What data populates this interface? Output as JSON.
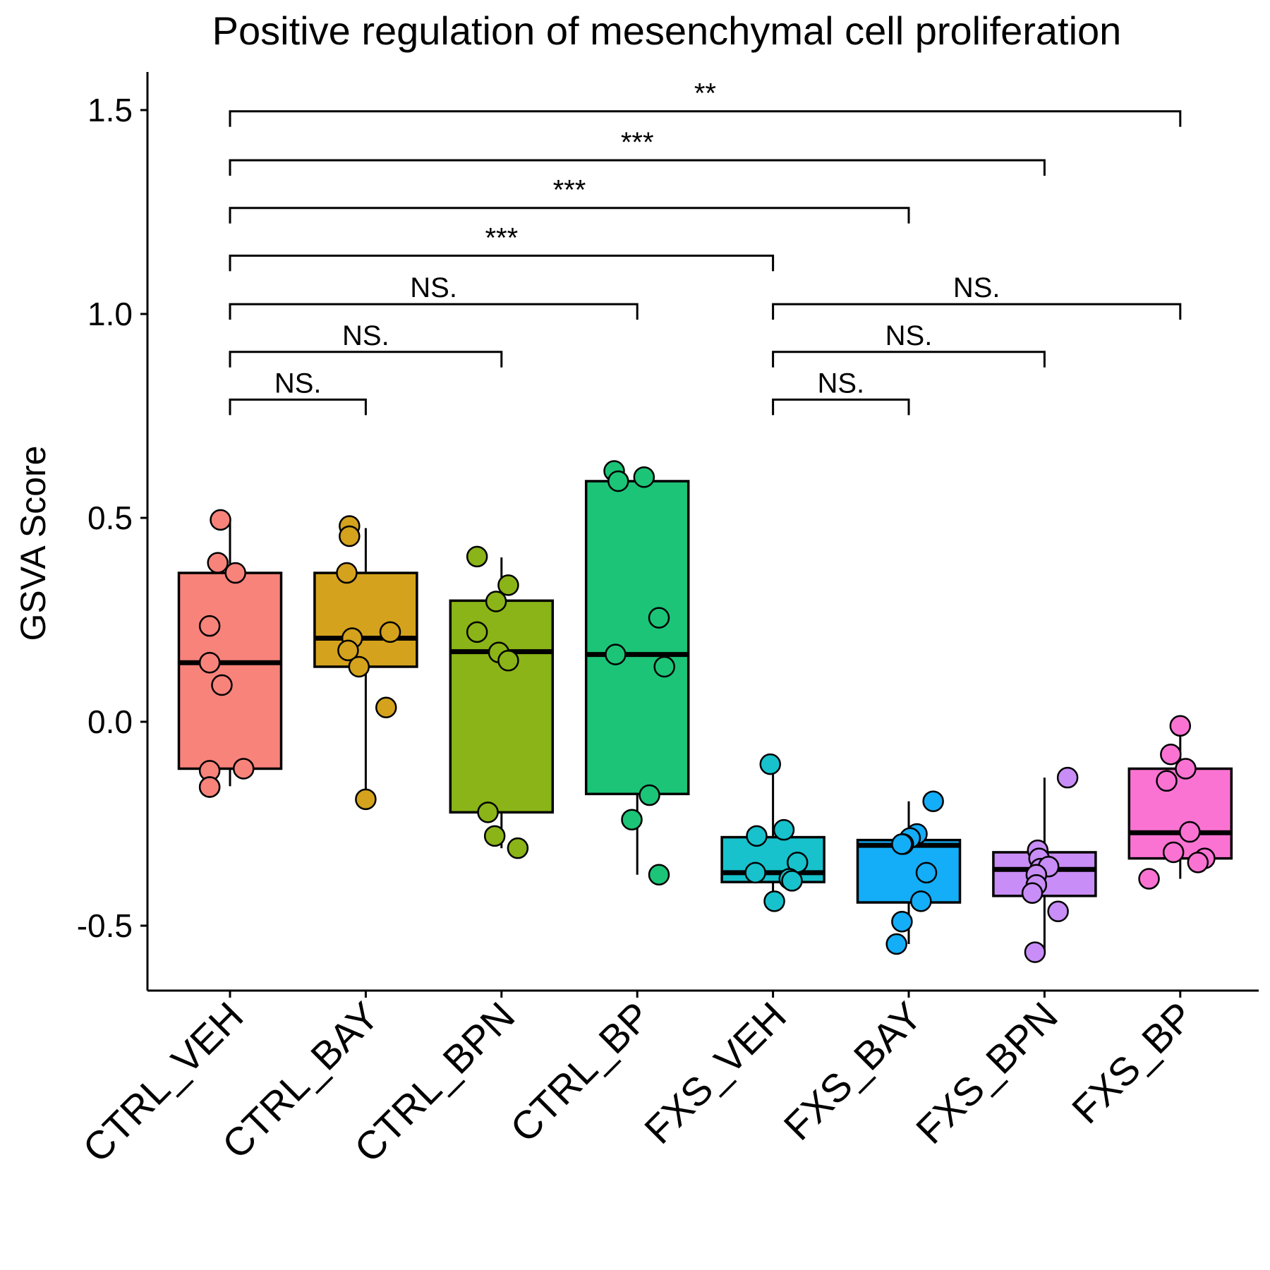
{
  "chart_data": {
    "type": "box",
    "title": "Positive regulation of mesenchymal cell proliferation",
    "xlabel": "",
    "ylabel": "GSVA Score",
    "ylim": [
      -0.66,
      1.6
    ],
    "yticks": [
      -0.5,
      0.0,
      0.5,
      1.0,
      1.5
    ],
    "ytick_labels": [
      "-0.5",
      "0.0",
      "0.5",
      "1.0",
      "1.5"
    ],
    "grid": false,
    "legend": "none",
    "categories": [
      "CTRL_VEH",
      "CTRL_BAY",
      "CTRL_BPN",
      "CTRL_BP",
      "FXS_VEH",
      "FXS_BAY",
      "FXS_BPN",
      "FXS_BP"
    ],
    "colors": [
      "#F8837A",
      "#D4A21C",
      "#8AB417",
      "#1CC477",
      "#17C2CC",
      "#14ADF7",
      "#C88DF7",
      "#FA73D2"
    ],
    "boxes": [
      {
        "category": "CTRL_VEH",
        "q1": -0.115,
        "median": 0.145,
        "q3": 0.365,
        "whisker_low": -0.158,
        "whisker_high": 0.495
      },
      {
        "category": "CTRL_BAY",
        "q1": 0.135,
        "median": 0.205,
        "q3": 0.365,
        "whisker_low": -0.19,
        "whisker_high": 0.475
      },
      {
        "category": "CTRL_BPN",
        "q1": -0.222,
        "median": 0.172,
        "q3": 0.297,
        "whisker_low": -0.31,
        "whisker_high": 0.403
      },
      {
        "category": "CTRL_BP",
        "q1": -0.177,
        "median": 0.165,
        "q3": 0.59,
        "whisker_low": -0.375,
        "whisker_high": 0.61
      },
      {
        "category": "FXS_VEH",
        "q1": -0.393,
        "median": -0.37,
        "q3": -0.283,
        "whisker_low": -0.44,
        "whisker_high": -0.104
      },
      {
        "category": "FXS_BAY",
        "q1": -0.443,
        "median": -0.303,
        "q3": -0.29,
        "whisker_low": -0.545,
        "whisker_high": -0.195
      },
      {
        "category": "FXS_BPN",
        "q1": -0.427,
        "median": -0.362,
        "q3": -0.32,
        "whisker_low": -0.565,
        "whisker_high": -0.137
      },
      {
        "category": "FXS_BP",
        "q1": -0.335,
        "median": -0.272,
        "q3": -0.115,
        "whisker_low": -0.385,
        "whisker_high": -0.01
      }
    ],
    "points": [
      {
        "category": "CTRL_VEH",
        "x": [
          -0.07,
          -0.09,
          0.04,
          -0.15,
          -0.15,
          -0.06,
          0.1,
          -0.15,
          -0.15,
          -0.15
        ],
        "y": [
          0.495,
          0.39,
          0.365,
          0.235,
          0.145,
          0.09,
          -0.115,
          -0.12,
          -0.16,
          -0.16
        ]
      },
      {
        "category": "CTRL_BAY",
        "x": [
          -0.12,
          -0.12,
          -0.14,
          -0.1,
          0.18,
          -0.13,
          -0.05,
          0.15,
          0.0
        ],
        "y": [
          0.48,
          0.455,
          0.365,
          0.205,
          0.22,
          0.175,
          0.135,
          0.035,
          -0.19
        ]
      },
      {
        "category": "CTRL_BPN",
        "x": [
          -0.18,
          0.05,
          -0.04,
          -0.18,
          -0.02,
          0.05,
          -0.1,
          -0.05,
          0.12
        ],
        "y": [
          0.405,
          0.335,
          0.295,
          0.22,
          0.17,
          0.15,
          -0.222,
          -0.28,
          -0.31
        ]
      },
      {
        "category": "CTRL_BP",
        "x": [
          -0.17,
          -0.14,
          0.05,
          0.16,
          -0.16,
          0.2,
          0.09,
          -0.04,
          0.16
        ],
        "y": [
          0.615,
          0.59,
          0.6,
          0.255,
          0.165,
          0.135,
          -0.18,
          -0.24,
          -0.375
        ]
      },
      {
        "category": "FXS_VEH",
        "x": [
          -0.02,
          0.08,
          -0.12,
          0.18,
          -0.13,
          0.12,
          0.14,
          0.01
        ],
        "y": [
          -0.104,
          -0.265,
          -0.28,
          -0.345,
          -0.37,
          -0.385,
          -0.39,
          -0.44
        ]
      },
      {
        "category": "FXS_BAY",
        "x": [
          0.18,
          0.06,
          0.01,
          -0.04,
          -0.05,
          0.13,
          0.09,
          -0.05,
          -0.09
        ],
        "y": [
          -0.195,
          -0.275,
          -0.285,
          -0.3,
          -0.3,
          -0.37,
          -0.44,
          -0.49,
          -0.545
        ]
      },
      {
        "category": "FXS_BPN",
        "x": [
          0.17,
          -0.05,
          -0.04,
          -0.03,
          0.03,
          -0.06,
          -0.06,
          -0.09,
          0.1,
          -0.07
        ],
        "y": [
          -0.137,
          -0.315,
          -0.335,
          -0.36,
          -0.355,
          -0.375,
          -0.4,
          -0.42,
          -0.465,
          -0.565
        ]
      },
      {
        "category": "FXS_BP",
        "x": [
          0.0,
          -0.07,
          0.04,
          -0.1,
          0.07,
          -0.05,
          0.18,
          0.13,
          -0.23
        ],
        "y": [
          -0.01,
          -0.08,
          -0.115,
          -0.145,
          -0.27,
          -0.32,
          -0.335,
          -0.345,
          -0.385
        ]
      }
    ],
    "comparisons": [
      {
        "from": "CTRL_VEH",
        "to": "CTRL_BAY",
        "y": 0.79,
        "label": "NS."
      },
      {
        "from": "CTRL_VEH",
        "to": "CTRL_BPN",
        "y": 0.907,
        "label": "NS."
      },
      {
        "from": "CTRL_VEH",
        "to": "CTRL_BP",
        "y": 1.024,
        "label": "NS."
      },
      {
        "from": "CTRL_VEH",
        "to": "FXS_VEH",
        "y": 1.143,
        "label": "***"
      },
      {
        "from": "CTRL_VEH",
        "to": "FXS_BAY",
        "y": 1.26,
        "label": "***"
      },
      {
        "from": "CTRL_VEH",
        "to": "FXS_BPN",
        "y": 1.377,
        "label": "***"
      },
      {
        "from": "CTRL_VEH",
        "to": "FXS_BP",
        "y": 1.497,
        "label": "**"
      },
      {
        "from": "FXS_VEH",
        "to": "FXS_BAY",
        "y": 0.79,
        "label": "NS."
      },
      {
        "from": "FXS_VEH",
        "to": "FXS_BPN",
        "y": 0.907,
        "label": "NS."
      },
      {
        "from": "FXS_VEH",
        "to": "FXS_BP",
        "y": 1.024,
        "label": "NS."
      }
    ]
  }
}
